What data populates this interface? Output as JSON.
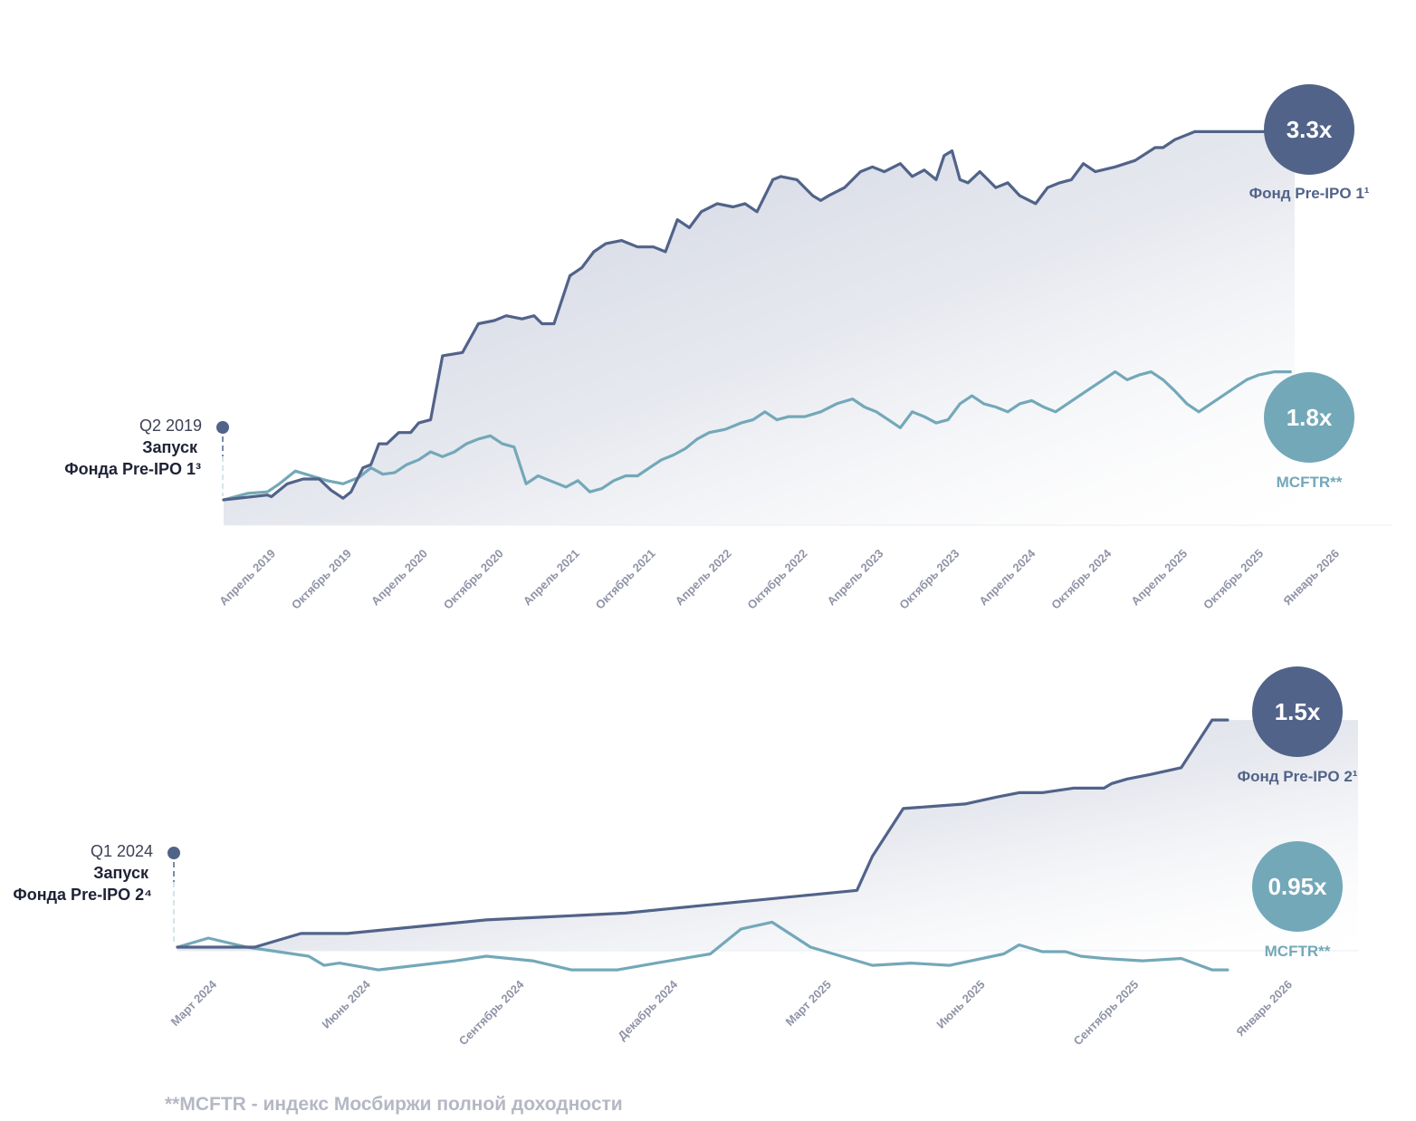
{
  "colors": {
    "fund": "#516389",
    "index": "#73a8b9",
    "area": "#cfd4e2"
  },
  "footnote": "**MCFTR - индекс Мосбиржи полной доходности",
  "chart_data": [
    {
      "type": "line",
      "launch": {
        "quarter": "Q2 2019",
        "line1": "Запуск",
        "line2": "Фонда Pre-IPO 1³"
      },
      "x_ticks": [
        "Апрель 2019",
        "Октябрь 2019",
        "Апрель 2020",
        "Октябрь 2020",
        "Апрель 2021",
        "Октябрь 2021",
        "Апрель 2022",
        "Октябрь 2022",
        "Апрель 2023",
        "Октябрь 2023",
        "Апрель 2024",
        "Октябрь 2024",
        "Апрель 2025",
        "Октябрь 2025",
        "Январь 2026"
      ],
      "x_range": [
        0,
        14
      ],
      "ylim": [
        0.9,
        3.5
      ],
      "series": [
        {
          "name": "Фонд Pre-IPO 1¹",
          "badge": "3.3x",
          "role": "fund",
          "x": [
            0,
            0.55,
            0.6,
            0.8,
            1.0,
            1.2,
            1.35,
            1.5,
            1.6,
            1.75,
            1.85,
            1.95,
            2.05,
            2.2,
            2.35,
            2.45,
            2.6,
            2.75,
            3.0,
            3.2,
            3.4,
            3.55,
            3.75,
            3.9,
            4.0,
            4.15,
            4.35,
            4.5,
            4.65,
            4.8,
            5.0,
            5.2,
            5.4,
            5.55,
            5.7,
            5.85,
            6.0,
            6.2,
            6.4,
            6.55,
            6.7,
            6.85,
            6.9,
            7.0,
            7.2,
            7.4,
            7.5,
            7.6,
            7.8,
            8.0,
            8.15,
            8.3,
            8.5,
            8.65,
            8.8,
            8.95,
            9.05,
            9.15,
            9.25,
            9.35,
            9.5,
            9.6,
            9.7,
            9.85,
            10.0,
            10.2,
            10.35,
            10.5,
            10.65,
            10.8,
            10.95,
            11.2,
            11.45,
            11.7,
            11.8,
            11.95,
            12.2,
            12.35,
            12.5,
            12.65,
            12.8,
            13.05,
            13.25,
            13.4
          ],
          "y": [
            1.0,
            1.03,
            1.02,
            1.1,
            1.13,
            1.13,
            1.06,
            1.01,
            1.05,
            1.2,
            1.22,
            1.35,
            1.35,
            1.42,
            1.42,
            1.48,
            1.5,
            1.9,
            1.92,
            2.1,
            2.12,
            2.15,
            2.13,
            2.15,
            2.1,
            2.1,
            2.4,
            2.45,
            2.55,
            2.6,
            2.62,
            2.58,
            2.58,
            2.55,
            2.75,
            2.7,
            2.8,
            2.85,
            2.83,
            2.85,
            2.8,
            2.95,
            3.0,
            3.02,
            3.0,
            2.9,
            2.87,
            2.9,
            2.95,
            3.05,
            3.08,
            3.05,
            3.1,
            3.02,
            3.06,
            3.0,
            3.15,
            3.18,
            3.0,
            2.98,
            3.05,
            3.0,
            2.95,
            2.98,
            2.9,
            2.85,
            2.95,
            2.98,
            3.0,
            3.1,
            3.05,
            3.08,
            3.12,
            3.2,
            3.2,
            3.25,
            3.3,
            3.3,
            3.3,
            3.3,
            3.3,
            3.3,
            3.3,
            3.3
          ]
        },
        {
          "name": "MCFTR**",
          "badge": "1.8x",
          "role": "index",
          "x": [
            0,
            0.3,
            0.55,
            0.7,
            0.9,
            1.1,
            1.3,
            1.5,
            1.7,
            1.85,
            2.0,
            2.15,
            2.3,
            2.45,
            2.6,
            2.75,
            2.9,
            3.05,
            3.2,
            3.35,
            3.5,
            3.65,
            3.8,
            3.95,
            4.1,
            4.2,
            4.3,
            4.45,
            4.6,
            4.75,
            4.9,
            5.05,
            5.2,
            5.35,
            5.5,
            5.65,
            5.8,
            5.95,
            6.1,
            6.3,
            6.5,
            6.65,
            6.8,
            6.95,
            7.1,
            7.3,
            7.5,
            7.7,
            7.9,
            8.05,
            8.2,
            8.35,
            8.5,
            8.65,
            8.8,
            8.95,
            9.1,
            9.25,
            9.4,
            9.55,
            9.7,
            9.85,
            10.0,
            10.15,
            10.3,
            10.45,
            10.6,
            10.75,
            10.9,
            11.05,
            11.2,
            11.35,
            11.5,
            11.65,
            11.8,
            11.95,
            12.1,
            12.25,
            12.4,
            12.55,
            12.7,
            12.85,
            13.0,
            13.2,
            13.4
          ],
          "y": [
            1.0,
            1.04,
            1.05,
            1.1,
            1.18,
            1.15,
            1.12,
            1.1,
            1.14,
            1.2,
            1.16,
            1.17,
            1.22,
            1.25,
            1.3,
            1.27,
            1.3,
            1.35,
            1.38,
            1.4,
            1.35,
            1.33,
            1.1,
            1.15,
            1.12,
            1.1,
            1.08,
            1.12,
            1.05,
            1.07,
            1.12,
            1.15,
            1.15,
            1.2,
            1.25,
            1.28,
            1.32,
            1.38,
            1.42,
            1.44,
            1.48,
            1.5,
            1.55,
            1.5,
            1.52,
            1.52,
            1.55,
            1.6,
            1.63,
            1.58,
            1.55,
            1.5,
            1.45,
            1.55,
            1.52,
            1.48,
            1.5,
            1.6,
            1.65,
            1.6,
            1.58,
            1.55,
            1.6,
            1.62,
            1.58,
            1.55,
            1.6,
            1.65,
            1.7,
            1.75,
            1.8,
            1.75,
            1.78,
            1.8,
            1.75,
            1.68,
            1.6,
            1.55,
            1.6,
            1.65,
            1.7,
            1.75,
            1.78,
            1.8,
            1.8
          ]
        }
      ]
    },
    {
      "type": "line",
      "launch": {
        "quarter": "Q1 2024",
        "line1": "Запуск",
        "line2": "Фонда Pre-IPO 2⁴"
      },
      "x_ticks": [
        "Март 2024",
        "Июнь 2024",
        "Сентябрь 2024",
        "Декабрь 2024",
        "Март 2025",
        "Июнь 2025",
        "Сентябрь 2025",
        "Январь 2026"
      ],
      "x_range": [
        0,
        7
      ],
      "ylim": [
        0.85,
        1.55
      ],
      "series": [
        {
          "name": "Фонд Pre-IPO 2¹",
          "badge": "1.5x",
          "role": "fund",
          "x": [
            0,
            0.5,
            0.8,
            1.1,
            1.4,
            1.7,
            2.0,
            2.3,
            2.6,
            2.9,
            3.2,
            3.5,
            3.8,
            4.1,
            4.4,
            4.5,
            4.7,
            4.9,
            5.1,
            5.3,
            5.45,
            5.6,
            5.8,
            6.0,
            6.05,
            6.15,
            6.3,
            6.5,
            6.7,
            6.8
          ],
          "y": [
            1.0,
            1.0,
            1.03,
            1.03,
            1.04,
            1.05,
            1.06,
            1.065,
            1.07,
            1.075,
            1.085,
            1.095,
            1.105,
            1.115,
            1.125,
            1.2,
            1.305,
            1.31,
            1.315,
            1.33,
            1.34,
            1.34,
            1.35,
            1.35,
            1.36,
            1.37,
            1.38,
            1.395,
            1.5,
            1.5
          ]
        },
        {
          "name": "MCFTR**",
          "badge": "0.95x",
          "role": "index",
          "x": [
            0,
            0.2,
            0.45,
            0.85,
            0.95,
            1.05,
            1.3,
            1.55,
            1.8,
            2.0,
            2.3,
            2.55,
            2.85,
            3.1,
            3.45,
            3.65,
            3.85,
            4.1,
            4.5,
            4.75,
            5.0,
            5.35,
            5.45,
            5.6,
            5.75,
            5.85,
            6.0,
            6.25,
            6.5,
            6.7,
            6.8
          ],
          "y": [
            1.0,
            1.02,
            1.0,
            0.98,
            0.96,
            0.965,
            0.95,
            0.96,
            0.97,
            0.98,
            0.97,
            0.95,
            0.95,
            0.965,
            0.985,
            1.04,
            1.055,
            1.0,
            0.96,
            0.965,
            0.96,
            0.985,
            1.005,
            0.99,
            0.99,
            0.98,
            0.975,
            0.97,
            0.975,
            0.95,
            0.95
          ]
        }
      ]
    }
  ]
}
